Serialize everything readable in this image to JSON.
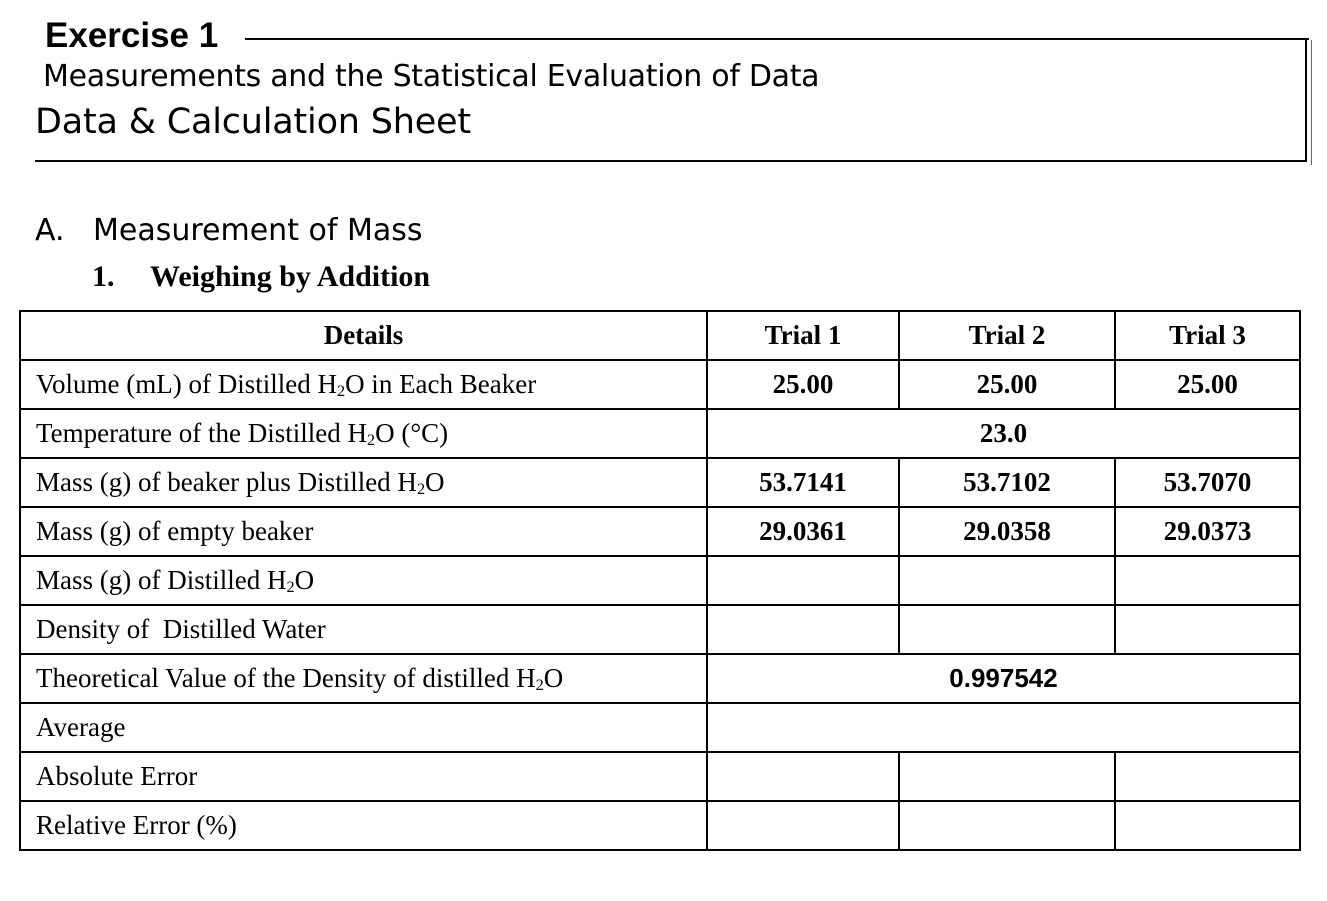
{
  "header": {
    "exercise": "Exercise 1",
    "subtitle": "Measurements and the Statistical Evaluation of Data",
    "sheet_title": "Data & Calculation Sheet"
  },
  "section": {
    "letter": "A.",
    "title": "Measurement of Mass",
    "sub_number": "1.",
    "sub_title": "Weighing by Addition"
  },
  "table": {
    "headers": [
      "Details",
      "Trial 1",
      "Trial 2",
      "Trial 3"
    ],
    "rows": {
      "volume": {
        "label_pre": "Volume (mL) of Distilled H",
        "label_sub": "2",
        "label_post": "O in Each Beaker",
        "values": [
          "25.00",
          "25.00",
          "25.00"
        ]
      },
      "temperature": {
        "label_pre": "Temperature of the Distilled H",
        "label_sub": "2",
        "label_post": "O (°C)",
        "value": "23.0"
      },
      "mass_beaker_water": {
        "label_pre": "Mass (g) of beaker plus Distilled H",
        "label_sub": "2",
        "label_post": "O",
        "values": [
          "53.7141",
          "53.7102",
          "53.7070"
        ]
      },
      "mass_empty": {
        "label": "Mass (g) of empty beaker",
        "values": [
          "29.0361",
          "29.0358",
          "29.0373"
        ]
      },
      "mass_water": {
        "label_pre": "Mass (g) of Distilled H",
        "label_sub": "2",
        "label_post": "O"
      },
      "density": {
        "label": "Density of  Distilled Water"
      },
      "theoretical": {
        "label_pre": "Theoretical Value of the Density of distilled H",
        "label_sub": "2",
        "label_post": "O",
        "value": "0.997542"
      },
      "average": {
        "label": "Average"
      },
      "absolute_error": {
        "label": "Absolute Error"
      },
      "relative_error": {
        "label": "Relative Error (%)"
      }
    }
  }
}
